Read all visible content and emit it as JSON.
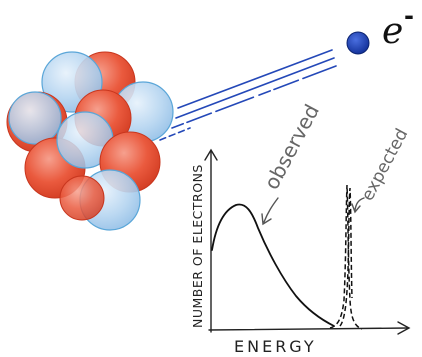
{
  "particle": {
    "symbol": "e",
    "charge": "-"
  },
  "plot": {
    "ylabel": "NUMBER OF ELECTRONS",
    "xlabel": "ENERGY"
  },
  "annotations": {
    "observed": "observed",
    "expected": "expected"
  },
  "colors": {
    "proton": "#e8543a",
    "neutron": "#a9cdee",
    "electron": "#1a3fae",
    "track": "#2448b8",
    "ink": "#222222",
    "annotation": "#666666"
  }
}
